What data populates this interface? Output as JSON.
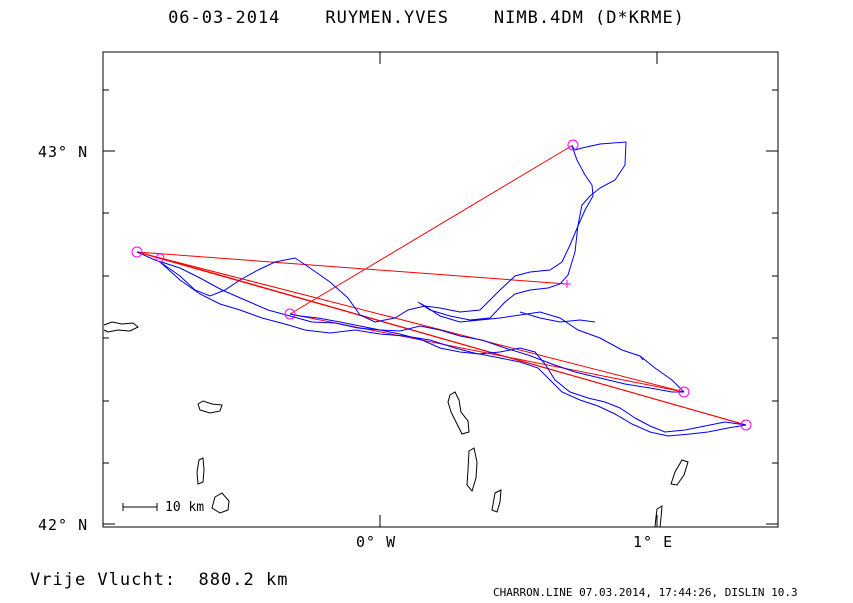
{
  "header": {
    "date": "06-03-2014",
    "pilot": "RUYMEN.YVES",
    "glider": "NIMB.4DM (D*KRME)"
  },
  "axes": {
    "lat_labels": [
      "43° N",
      "42° N"
    ],
    "lon_labels": [
      "0° W",
      "1° E"
    ]
  },
  "scale": {
    "label": "10 km"
  },
  "distance": {
    "label": "Vrije Vlucht:",
    "value": "880.2 km"
  },
  "footer": {
    "text": "CHARRON.LINE 07.03.2014, 17:44:26, DISLIN 10.3"
  },
  "colors": {
    "track": "#0000ff",
    "task": "#ff0000",
    "turnpoint": "#ff00ff",
    "border": "#000000"
  }
}
